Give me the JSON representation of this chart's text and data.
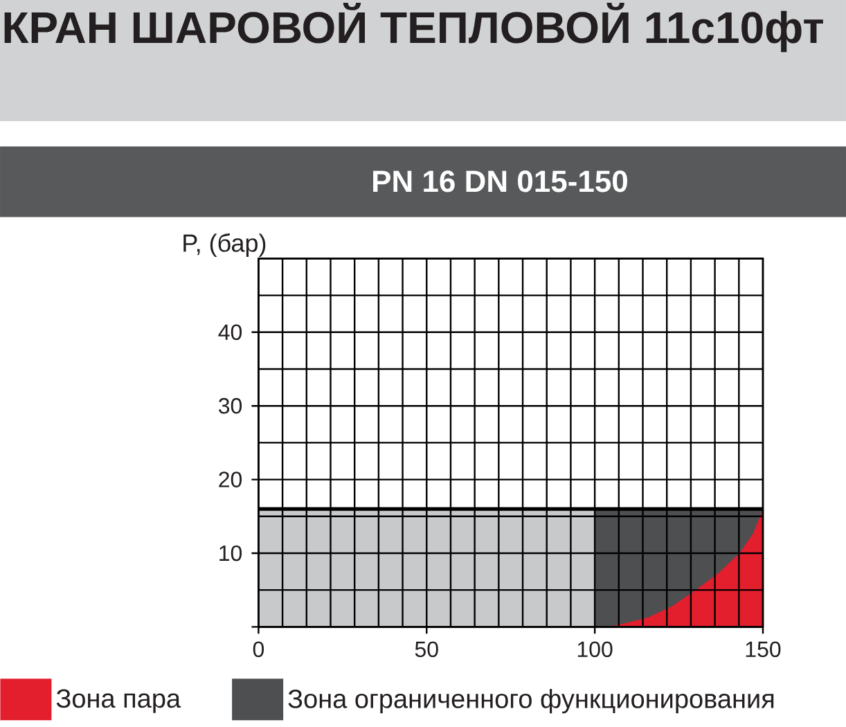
{
  "chart_data": {
    "type": "area",
    "title": "КРАН ШАРОВОЙ ТЕПЛОВОЙ 11с10фт",
    "subtitle": "PN 16 DN 015-150",
    "ylabel": "P, (бар)",
    "series": [
      {
        "color": "#c8c9cb",
        "x": [
          0,
          100
        ],
        "values": [
          16,
          16
        ]
      },
      {
        "name": "Зона ограниченного функционирования",
        "color": "#4d4f51",
        "x": [
          100,
          150
        ],
        "values": [
          16,
          16
        ]
      },
      {
        "name": "Зона пара",
        "color": "#e31e2d",
        "x": [
          104,
          110,
          116,
          123,
          130,
          137,
          143,
          147,
          150
        ],
        "values": [
          0,
          0.6,
          1.3,
          2.8,
          5,
          7.4,
          10,
          12.6,
          16
        ]
      }
    ],
    "xlim": [
      0,
      150
    ],
    "ylim": [
      0,
      50
    ],
    "xticks": [
      0,
      50,
      100,
      150
    ],
    "yticks": [
      {
        "value": 0,
        "label": null
      },
      10,
      20,
      30,
      40
    ],
    "ref_lines": [
      {
        "axis": "y",
        "value": 16,
        "color": "#000000"
      }
    ],
    "grid": true,
    "legend": "bottom"
  }
}
